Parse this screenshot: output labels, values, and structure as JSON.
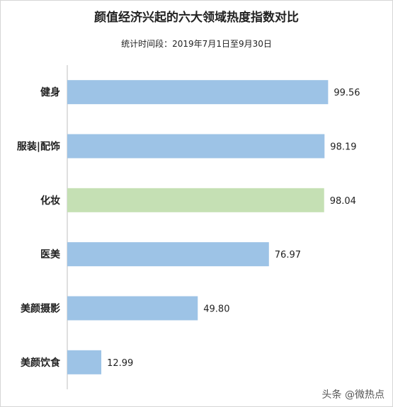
{
  "chart_data": {
    "type": "bar",
    "orientation": "horizontal",
    "title": "颜值经济兴起的六大领域热度指数对比",
    "subtitle": "统计时间段：2019年7月1日至9月30日",
    "categories": [
      "健身",
      "服装|配饰",
      "化妆",
      "医美",
      "美颜摄影",
      "美颜饮食"
    ],
    "values": [
      99.56,
      98.19,
      98.04,
      76.97,
      49.8,
      12.99
    ],
    "value_labels": [
      "99.56",
      "98.19",
      "98.04",
      "76.97",
      "49.80",
      "12.99"
    ],
    "colors": [
      "#9dc3e6",
      "#9dc3e6",
      "#c5e0b4",
      "#9dc3e6",
      "#9dc3e6",
      "#9dc3e6"
    ],
    "xlim": [
      0,
      100
    ],
    "grid": false,
    "legend": "none",
    "xlabel": "",
    "ylabel": ""
  },
  "watermark": "头条 @微热点"
}
